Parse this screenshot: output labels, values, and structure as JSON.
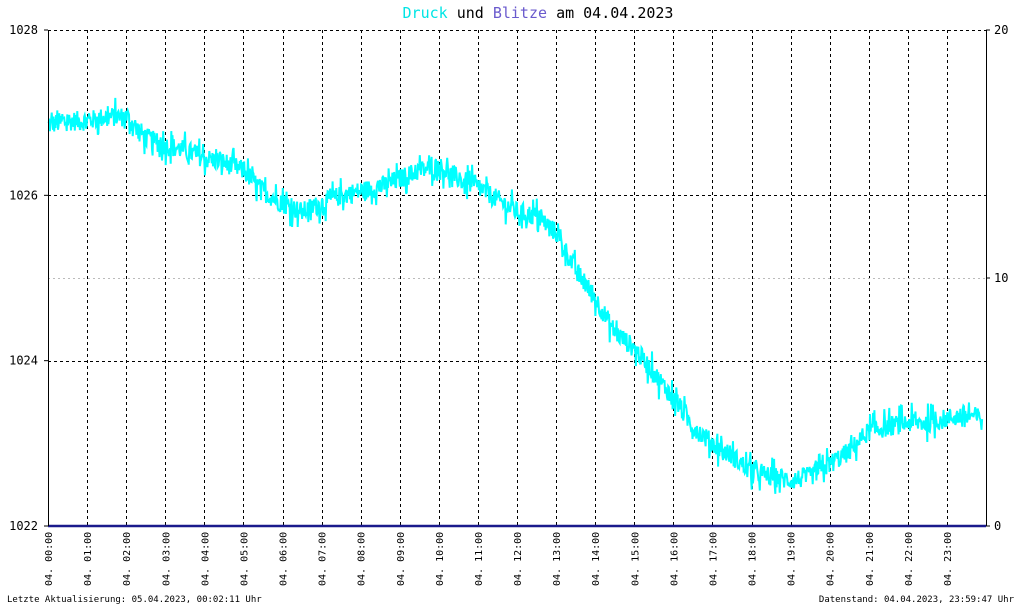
{
  "title": {
    "series1": "Druck",
    "conj": "und",
    "series2": "Blitze",
    "prep": "am",
    "date": "04.04.2023"
  },
  "colors": {
    "pressure": "#00ffff",
    "lightning": "#1a1a8c",
    "title_druck": "#00e5e5",
    "title_blitze": "#6a5acd",
    "frame": "#000000",
    "grid_major": "#000000",
    "grid_minor": "#bbbbbb"
  },
  "footer": {
    "left": "Letzte Aktualisierung: 05.04.2023, 00:02:11 Uhr",
    "right": "Datenstand: 04.04.2023, 23:59:47 Uhr"
  },
  "chart_data": {
    "type": "line",
    "x_tick_labels": [
      "04. 00:00",
      "04. 01:00",
      "04. 02:00",
      "04. 03:00",
      "04. 04:00",
      "04. 05:00",
      "04. 06:00",
      "04. 07:00",
      "04. 08:00",
      "04. 09:00",
      "04. 10:00",
      "04. 11:00",
      "04. 12:00",
      "04. 13:00",
      "04. 14:00",
      "04. 15:00",
      "04. 16:00",
      "04. 17:00",
      "04. 18:00",
      "04. 19:00",
      "04. 20:00",
      "04. 21:00",
      "04. 22:00",
      "04. 23:00"
    ],
    "xlim": [
      0,
      24
    ],
    "y_left": {
      "ylim": [
        1022,
        1028
      ],
      "tick_labels": [
        "1022",
        "1024",
        "1026",
        "1028"
      ]
    },
    "y_right": {
      "ylim": [
        0,
        20
      ],
      "tick_labels": [
        "0",
        "10",
        "20"
      ]
    },
    "grid": true,
    "series": [
      {
        "name": "Druck",
        "axis": "left",
        "x": [
          0,
          0.5,
          1,
          1.5,
          2,
          2.5,
          3,
          3.5,
          4,
          4.5,
          5,
          5.5,
          6,
          6.5,
          7,
          7.5,
          8,
          8.5,
          9,
          9.5,
          10,
          10.5,
          11,
          11.5,
          12,
          12.5,
          13,
          13.5,
          14,
          14.5,
          15,
          15.5,
          16,
          16.5,
          17,
          17.5,
          18,
          18.5,
          19,
          19.5,
          20,
          20.5,
          21,
          21.5,
          22,
          22.5,
          23,
          23.5,
          23.9
        ],
        "y": [
          1026.85,
          1026.9,
          1026.9,
          1026.95,
          1026.95,
          1026.7,
          1026.6,
          1026.55,
          1026.45,
          1026.4,
          1026.3,
          1026.05,
          1025.9,
          1025.8,
          1025.9,
          1026.0,
          1026.05,
          1026.1,
          1026.2,
          1026.3,
          1026.35,
          1026.2,
          1026.1,
          1025.95,
          1025.8,
          1025.75,
          1025.55,
          1025.1,
          1024.75,
          1024.35,
          1024.15,
          1023.85,
          1023.55,
          1023.2,
          1023.0,
          1022.85,
          1022.65,
          1022.6,
          1022.55,
          1022.6,
          1022.75,
          1022.9,
          1023.15,
          1023.2,
          1023.25,
          1023.25,
          1023.3,
          1023.35,
          1023.3
        ],
        "noise_amplitude": 0.15
      },
      {
        "name": "Blitze",
        "axis": "right",
        "x": [
          0,
          24
        ],
        "y": [
          0,
          0
        ]
      }
    ]
  }
}
